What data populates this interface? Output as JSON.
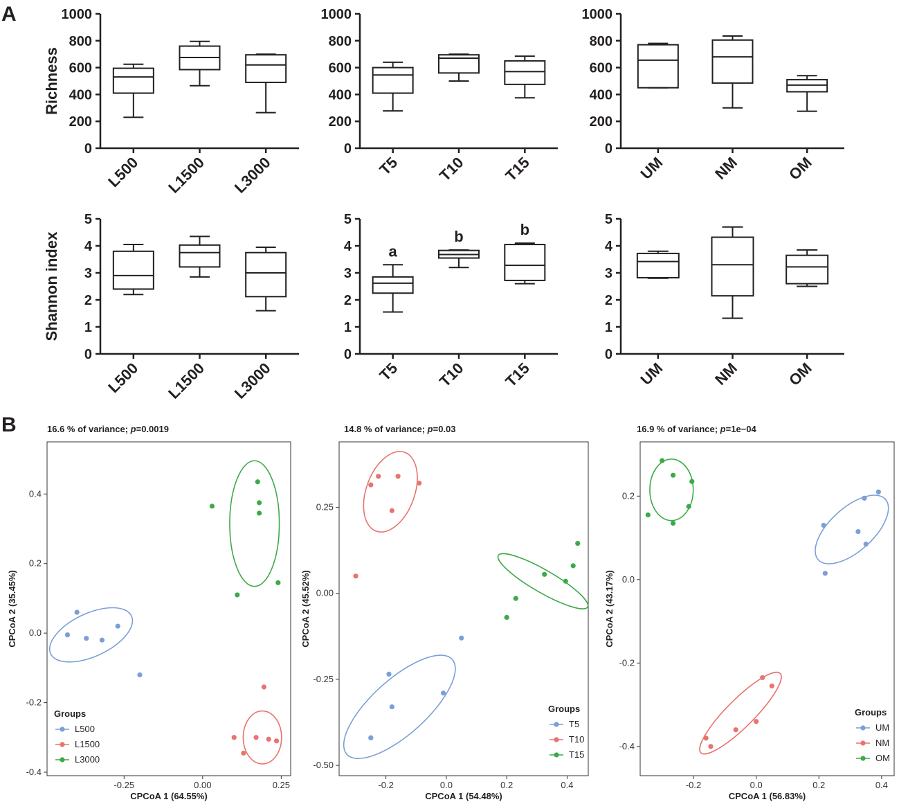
{
  "panel_labels": [
    "A",
    "B"
  ],
  "chart_data": [
    {
      "type": "box",
      "panel": "A",
      "title": "",
      "xlabel": "",
      "ylabel": "Richness",
      "ylim": [
        0,
        1000
      ],
      "yticks": [
        0,
        200,
        400,
        600,
        800,
        1000
      ],
      "categories": [
        "L500",
        "L1500",
        "L3000"
      ],
      "boxes": [
        {
          "min": 230,
          "q1": 410,
          "median": 530,
          "q3": 595,
          "max": 625
        },
        {
          "min": 465,
          "q1": 585,
          "median": 675,
          "q3": 760,
          "max": 795
        },
        {
          "min": 265,
          "q1": 490,
          "median": 620,
          "q3": 695,
          "max": 700
        }
      ],
      "annotations": []
    },
    {
      "type": "box",
      "panel": "A",
      "title": "",
      "xlabel": "",
      "ylabel": "",
      "ylim": [
        0,
        1000
      ],
      "yticks": [
        0,
        200,
        400,
        600,
        800,
        1000
      ],
      "categories": [
        "T5",
        "T10",
        "T15"
      ],
      "boxes": [
        {
          "min": 278,
          "q1": 410,
          "median": 545,
          "q3": 600,
          "max": 640
        },
        {
          "min": 500,
          "q1": 560,
          "median": 670,
          "q3": 695,
          "max": 700
        },
        {
          "min": 375,
          "q1": 475,
          "median": 570,
          "q3": 650,
          "max": 685
        }
      ],
      "annotations": []
    },
    {
      "type": "box",
      "panel": "A",
      "title": "",
      "xlabel": "",
      "ylabel": "",
      "ylim": [
        0,
        1000
      ],
      "yticks": [
        0,
        200,
        400,
        600,
        800,
        1000
      ],
      "categories": [
        "UM",
        "NM",
        "OM"
      ],
      "boxes": [
        {
          "min": 450,
          "q1": 450,
          "median": 655,
          "q3": 770,
          "max": 780
        },
        {
          "min": 300,
          "q1": 485,
          "median": 680,
          "q3": 805,
          "max": 835
        },
        {
          "min": 275,
          "q1": 420,
          "median": 470,
          "q3": 510,
          "max": 540
        }
      ],
      "annotations": []
    },
    {
      "type": "box",
      "panel": "A",
      "title": "",
      "xlabel": "",
      "ylabel": "Shannon index",
      "ylim": [
        0,
        5
      ],
      "yticks": [
        0,
        1,
        2,
        3,
        4,
        5
      ],
      "categories": [
        "L500",
        "L1500",
        "L3000"
      ],
      "boxes": [
        {
          "min": 2.2,
          "q1": 2.4,
          "median": 2.9,
          "q3": 3.8,
          "max": 4.05
        },
        {
          "min": 2.85,
          "q1": 3.22,
          "median": 3.75,
          "q3": 4.03,
          "max": 4.35
        },
        {
          "min": 1.6,
          "q1": 2.12,
          "median": 3.0,
          "q3": 3.75,
          "max": 3.95
        }
      ],
      "annotations": []
    },
    {
      "type": "box",
      "panel": "A",
      "title": "",
      "xlabel": "",
      "ylabel": "",
      "ylim": [
        0,
        5
      ],
      "yticks": [
        0,
        1,
        2,
        3,
        4,
        5
      ],
      "categories": [
        "T5",
        "T10",
        "T15"
      ],
      "boxes": [
        {
          "min": 1.55,
          "q1": 2.25,
          "median": 2.62,
          "q3": 2.85,
          "max": 3.3
        },
        {
          "min": 3.2,
          "q1": 3.55,
          "median": 3.68,
          "q3": 3.83,
          "max": 3.85
        },
        {
          "min": 2.6,
          "q1": 2.72,
          "median": 3.28,
          "q3": 4.05,
          "max": 4.1
        }
      ],
      "annotations": [
        "a",
        "b",
        "b"
      ]
    },
    {
      "type": "box",
      "panel": "A",
      "title": "",
      "xlabel": "",
      "ylabel": "",
      "ylim": [
        0,
        5
      ],
      "yticks": [
        0,
        1,
        2,
        3,
        4,
        5
      ],
      "categories": [
        "UM",
        "NM",
        "OM"
      ],
      "boxes": [
        {
          "min": 2.8,
          "q1": 2.82,
          "median": 3.42,
          "q3": 3.72,
          "max": 3.8
        },
        {
          "min": 1.32,
          "q1": 2.15,
          "median": 3.3,
          "q3": 4.32,
          "max": 4.7
        },
        {
          "min": 2.5,
          "q1": 2.6,
          "median": 3.22,
          "q3": 3.65,
          "max": 3.85
        }
      ],
      "annotations": []
    },
    {
      "type": "scatter",
      "panel": "B",
      "title": "16.6 % of variance; p=0.0019",
      "title_prefix": "16.6 % of variance; ",
      "title_p": "p",
      "title_value": "=0.0019",
      "xlabel": "CPCoA 1 (64.55%)",
      "ylabel": "CPCoA 2 (35.45%)",
      "xlim": [
        -0.495,
        0.28
      ],
      "ylim": [
        -0.41,
        0.55
      ],
      "xticks": [
        "-0.25",
        "0.00",
        "0.25"
      ],
      "yticks": [
        "-0.4",
        "-0.2",
        "0.0",
        "0.2",
        "0.4"
      ],
      "legend": {
        "title": "Groups",
        "position": "bottom-left"
      },
      "series": [
        {
          "name": "L500",
          "color": "#7b9fd6",
          "points": [
            [
              -0.43,
              -0.005
            ],
            [
              -0.4,
              0.06
            ],
            [
              -0.37,
              -0.015
            ],
            [
              -0.32,
              -0.02
            ],
            [
              -0.27,
              0.02
            ],
            [
              -0.2,
              -0.12
            ]
          ],
          "ellipse": {
            "cx": -0.355,
            "cy": -0.005,
            "rx": 0.135,
            "ry": 0.065,
            "angle": -25
          }
        },
        {
          "name": "L1500",
          "color": "#e8736f",
          "points": [
            [
              0.1,
              -0.3
            ],
            [
              0.13,
              -0.345
            ],
            [
              0.17,
              -0.3
            ],
            [
              0.195,
              -0.155
            ],
            [
              0.21,
              -0.305
            ],
            [
              0.235,
              -0.31
            ]
          ],
          "ellipse": {
            "cx": 0.19,
            "cy": -0.3,
            "rx": 0.058,
            "ry": 0.08,
            "angle": 0
          }
        },
        {
          "name": "L3000",
          "color": "#3daa49",
          "points": [
            [
              0.03,
              0.365
            ],
            [
              0.11,
              0.11
            ],
            [
              0.175,
              0.435
            ],
            [
              0.18,
              0.375
            ],
            [
              0.18,
              0.345
            ],
            [
              0.24,
              0.145
            ]
          ],
          "ellipse": {
            "cx": 0.165,
            "cy": 0.315,
            "rx": 0.075,
            "ry": 0.19,
            "angle": 0
          }
        }
      ]
    },
    {
      "type": "scatter",
      "panel": "B",
      "title": "14.8 % of variance; p=0.03",
      "title_prefix": "14.8 % of variance; ",
      "title_p": "p",
      "title_value": "=0.03",
      "xlabel": "CPCoA 1 (54.48%)",
      "ylabel": "CPCoA 2 (45.52%)",
      "xlim": [
        -0.355,
        0.47
      ],
      "ylim": [
        -0.53,
        0.44
      ],
      "xticks": [
        "-0.2",
        "0.0",
        "0.2",
        "0.4"
      ],
      "yticks": [
        "-0.50",
        "-0.25",
        "0.00",
        "0.25"
      ],
      "legend": {
        "title": "Groups",
        "position": "bottom-right"
      },
      "series": [
        {
          "name": "T5",
          "color": "#7b9fd6",
          "points": [
            [
              -0.25,
              -0.42
            ],
            [
              -0.19,
              -0.235
            ],
            [
              -0.18,
              -0.33
            ],
            [
              -0.01,
              -0.29
            ],
            [
              0.05,
              -0.13
            ],
            [
              -0.25,
              -0.42
            ]
          ],
          "ellipse": {
            "cx": -0.155,
            "cy": -0.33,
            "rx": 0.22,
            "ry": 0.085,
            "angle": -42
          }
        },
        {
          "name": "T10",
          "color": "#e8736f",
          "points": [
            [
              -0.3,
              0.05
            ],
            [
              -0.25,
              0.315
            ],
            [
              -0.225,
              0.34
            ],
            [
              -0.18,
              0.24
            ],
            [
              -0.16,
              0.34
            ],
            [
              -0.09,
              0.32
            ]
          ],
          "ellipse": {
            "cx": -0.185,
            "cy": 0.295,
            "rx": 0.075,
            "ry": 0.13,
            "angle": 20
          }
        },
        {
          "name": "T15",
          "color": "#3daa49",
          "points": [
            [
              0.2,
              -0.07
            ],
            [
              0.23,
              -0.015
            ],
            [
              0.325,
              0.055
            ],
            [
              0.395,
              0.035
            ],
            [
              0.42,
              0.08
            ],
            [
              0.435,
              0.145
            ]
          ],
          "ellipse": {
            "cx": 0.32,
            "cy": 0.035,
            "rx": 0.16,
            "ry": 0.035,
            "angle": 30
          }
        }
      ]
    },
    {
      "type": "scatter",
      "panel": "B",
      "title": "16.9 % of variance; p=1e−04",
      "title_prefix": "16.9 % of variance; ",
      "title_p": "p",
      "title_value": "=1e−04",
      "xlabel": "CPCoA 1 (56.83%)",
      "ylabel": "CPCoA 2 (43.17%)",
      "xlim": [
        -0.37,
        0.44
      ],
      "ylim": [
        -0.47,
        0.33
      ],
      "xticks": [
        "-0.2",
        "0.0",
        "0.2",
        "0.4"
      ],
      "yticks": [
        "-0.4",
        "-0.2",
        "0.0",
        "0.2"
      ],
      "legend": {
        "title": "Groups",
        "position": "bottom-right"
      },
      "series": [
        {
          "name": "UM",
          "color": "#7b9fd6",
          "points": [
            [
              0.215,
              0.13
            ],
            [
              0.22,
              0.015
            ],
            [
              0.325,
              0.115
            ],
            [
              0.345,
              0.195
            ],
            [
              0.35,
              0.085
            ],
            [
              0.39,
              0.21
            ]
          ],
          "ellipse": {
            "cx": 0.305,
            "cy": 0.12,
            "rx": 0.125,
            "ry": 0.06,
            "angle": -42
          }
        },
        {
          "name": "NM",
          "color": "#e8736f",
          "points": [
            [
              -0.16,
              -0.38
            ],
            [
              -0.145,
              -0.4
            ],
            [
              -0.065,
              -0.36
            ],
            [
              0.0,
              -0.34
            ],
            [
              0.02,
              -0.235
            ],
            [
              0.05,
              -0.255
            ]
          ],
          "ellipse": {
            "cx": -0.05,
            "cy": -0.32,
            "rx": 0.155,
            "ry": 0.038,
            "angle": -45
          }
        },
        {
          "name": "OM",
          "color": "#3daa49",
          "points": [
            [
              -0.345,
              0.155
            ],
            [
              -0.3,
              0.285
            ],
            [
              -0.265,
              0.135
            ],
            [
              -0.265,
              0.25
            ],
            [
              -0.215,
              0.175
            ],
            [
              -0.205,
              0.235
            ]
          ],
          "ellipse": {
            "cx": -0.27,
            "cy": 0.215,
            "rx": 0.06,
            "ry": 0.085,
            "angle": 0
          }
        }
      ]
    }
  ]
}
